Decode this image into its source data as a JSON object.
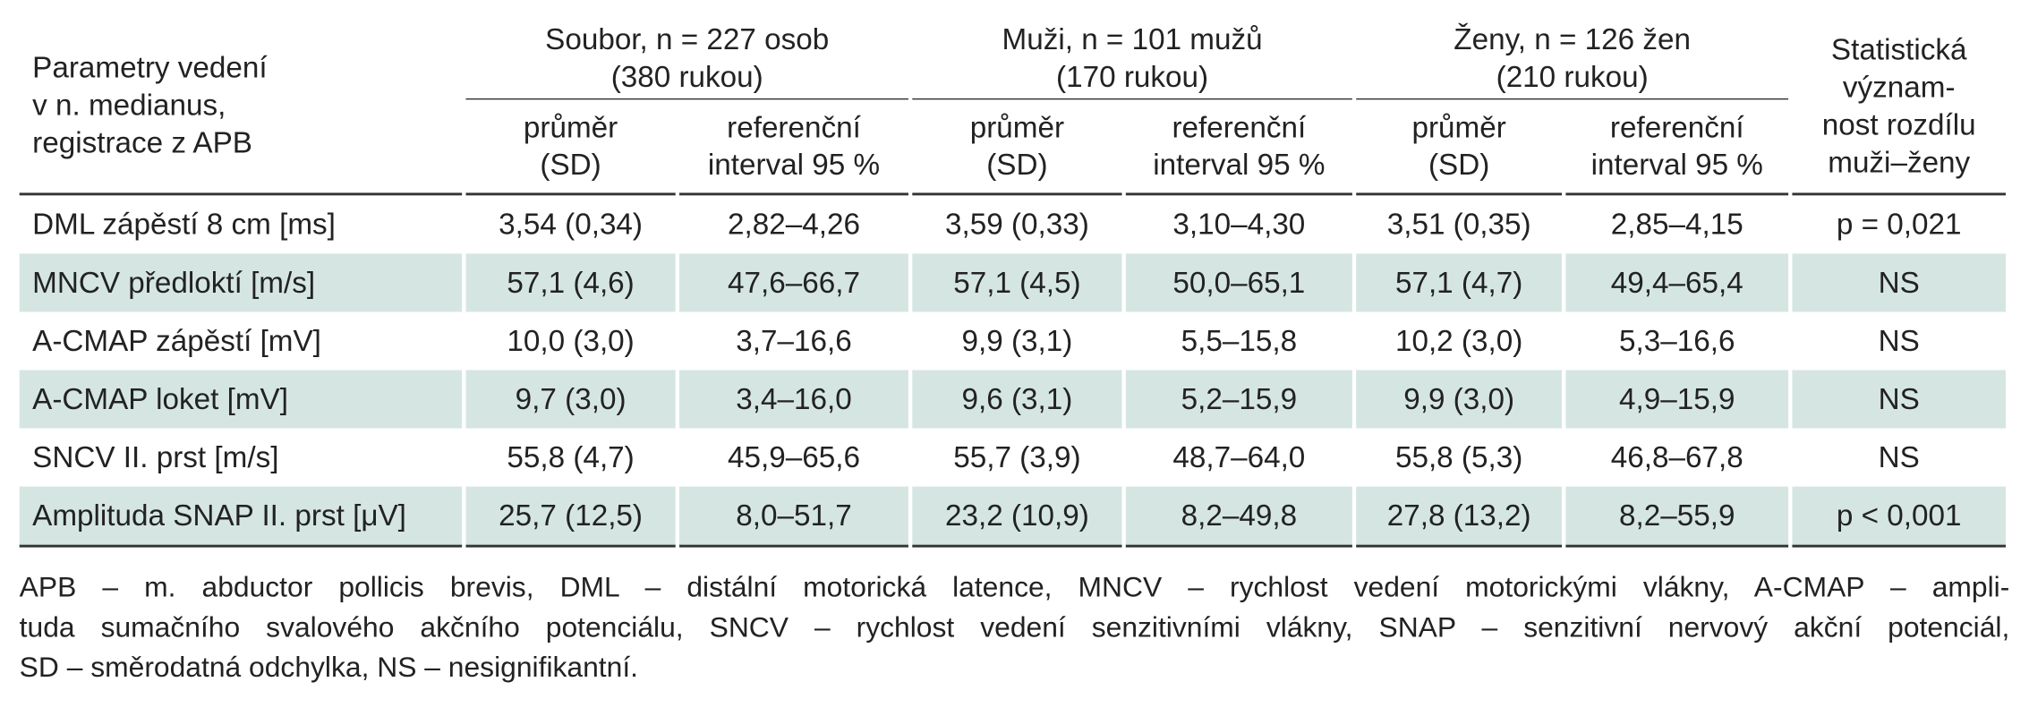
{
  "table": {
    "header": {
      "row_label": [
        "Parametry vedení",
        "v n. medianus,",
        "registrace z APB"
      ],
      "groups": [
        [
          "Soubor, n = 227 osob",
          "(380 rukou)"
        ],
        [
          "Muži, n = 101 mužů",
          "(170 rukou)"
        ],
        [
          "Ženy, n = 126 žen",
          "(210 rukou)"
        ]
      ],
      "subheaders": [
        [
          "průměr",
          "(SD)"
        ],
        [
          "referenční",
          "interval 95 %"
        ],
        [
          "průměr",
          "(SD)"
        ],
        [
          "referenční",
          "interval 95 %"
        ],
        [
          "průměr",
          "(SD)"
        ],
        [
          "referenční",
          "interval 95 %"
        ]
      ],
      "significance": [
        "Statistická",
        "význam-",
        "nost rozdílu",
        "muži–ženy"
      ]
    },
    "rows": [
      [
        "DML zápěstí 8 cm [ms]",
        "3,54 (0,34)",
        "2,82–4,26",
        "3,59 (0,33)",
        "3,10–4,30",
        "3,51 (0,35)",
        "2,85–4,15",
        "p = 0,021"
      ],
      [
        "MNCV předloktí [m/s]",
        "57,1 (4,6)",
        "47,6–66,7",
        "57,1 (4,5)",
        "50,0–65,1",
        "57,1 (4,7)",
        "49,4–65,4",
        "NS"
      ],
      [
        "A-CMAP zápěstí [mV]",
        "10,0 (3,0)",
        "3,7–16,6",
        "9,9 (3,1)",
        "5,5–15,8",
        "10,2 (3,0)",
        "5,3–16,6",
        "NS"
      ],
      [
        "A-CMAP loket [mV]",
        "9,7 (3,0)",
        "3,4–16,0",
        "9,6 (3,1)",
        "5,2–15,9",
        "9,9 (3,0)",
        "4,9–15,9",
        "NS"
      ],
      [
        "SNCV II. prst [m/s]",
        "55,8 (4,7)",
        "45,9–65,6",
        "55,7 (3,9)",
        "48,7–64,0",
        "55,8 (5,3)",
        "46,8–67,8",
        "NS"
      ],
      [
        "Amplituda SNAP II. prst [μV]",
        "25,7 (12,5)",
        "8,0–51,7",
        "23,2 (10,9)",
        "8,2–49,8",
        "27,8 (13,2)",
        "8,2–55,9",
        "p < 0,001"
      ]
    ]
  },
  "footnote": [
    "APB – m. abductor pollicis brevis, DML – distální motorická latence, MNCV – rychlost vedení motorickými vlákny, A-CMAP – ampli-",
    "tuda sumačního svalového akčního potenciálu, SNCV – rychlost vedení senzitivními vlákny, SNAP – senzitivní nervový akční potenciál,",
    "SD – směrodatná odchylka, NS – nesignifikantní."
  ]
}
